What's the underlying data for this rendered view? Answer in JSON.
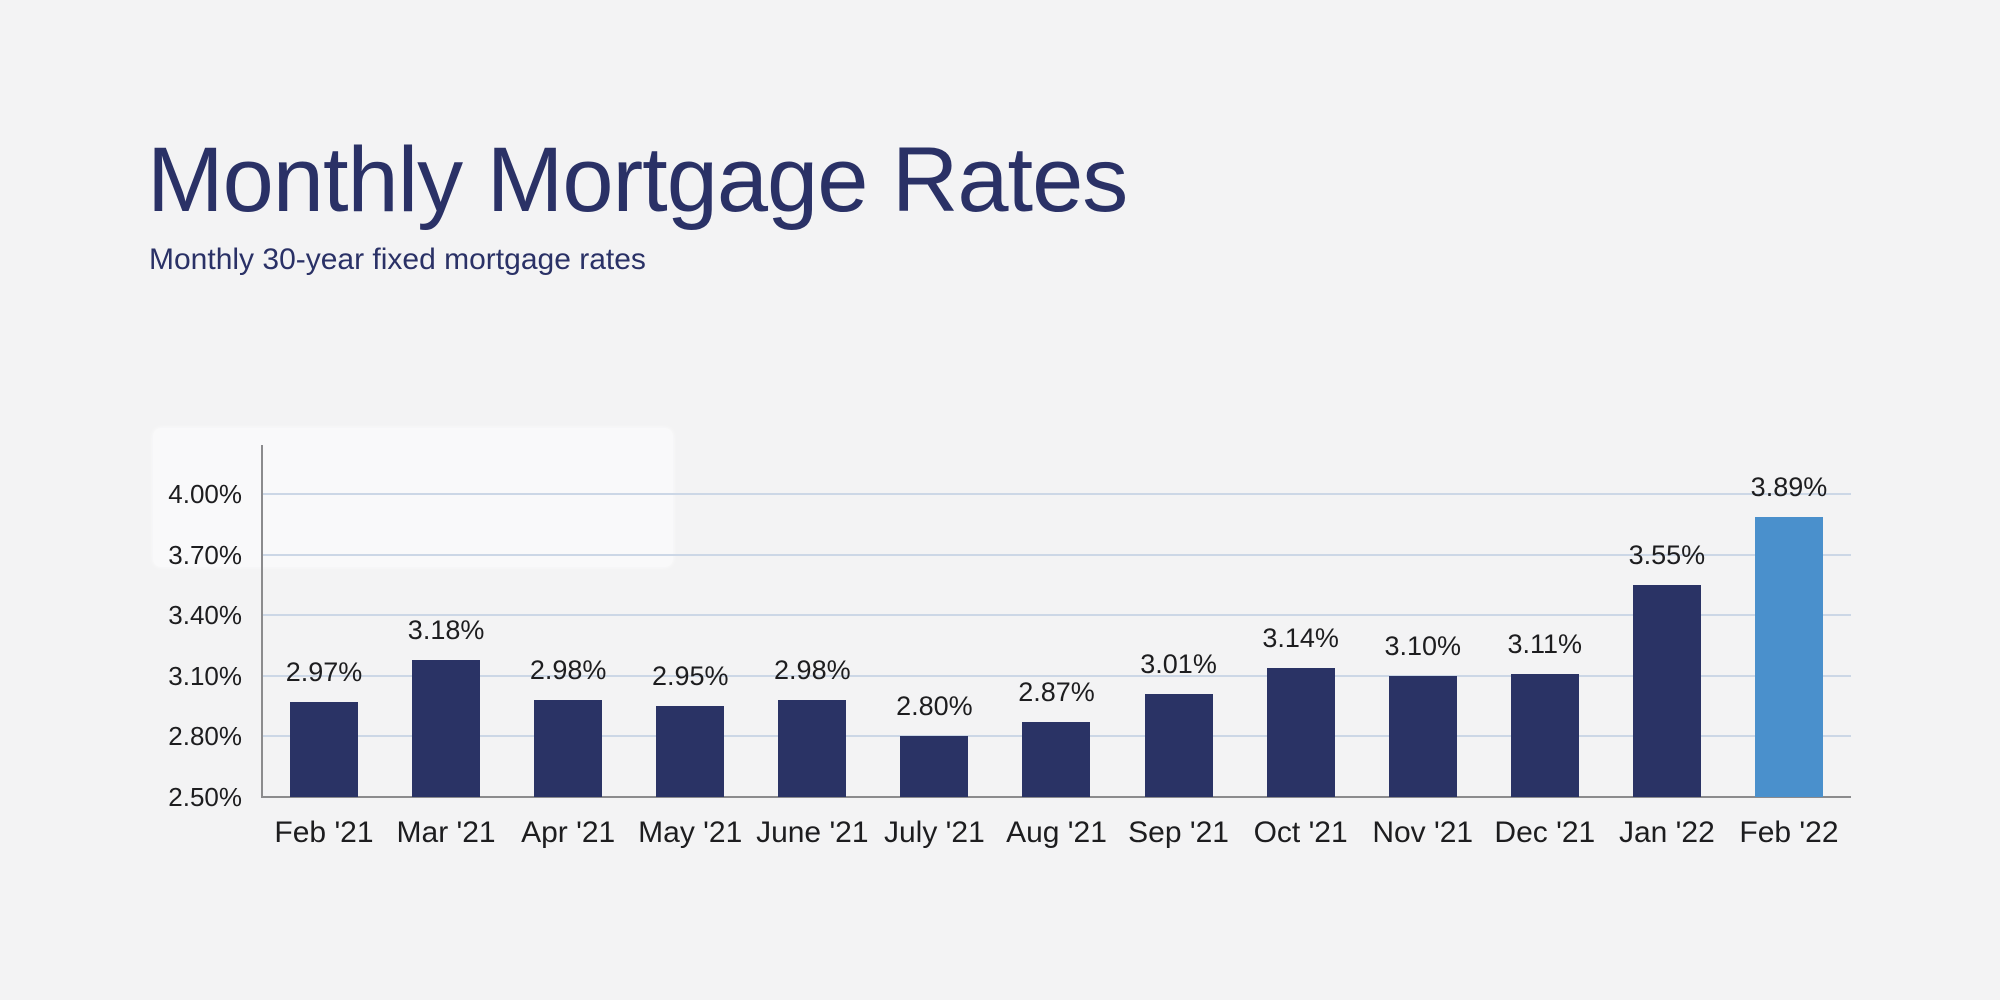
{
  "header": {
    "title": "Monthly Mortgage Rates",
    "subtitle": "Monthly 30-year fixed mortgage rates"
  },
  "colors": {
    "background": "#f3f3f4",
    "title_text": "#2a3166",
    "bar_primary": "#2a3365",
    "bar_highlight": "#4a90cc",
    "gridline": "#ccd7e6",
    "axis": "#8b8b8d",
    "label_text": "#1d1d1f"
  },
  "chart_data": {
    "type": "bar",
    "title": "Monthly Mortgage Rates",
    "subtitle": "Monthly 30-year fixed mortgage rates",
    "categories": [
      "Feb '21",
      "Mar '21",
      "Apr '21",
      "May '21",
      "June '21",
      "July '21",
      "Aug '21",
      "Sep '21",
      "Oct '21",
      "Nov '21",
      "Dec '21",
      "Jan '22",
      "Feb '22"
    ],
    "values": [
      2.97,
      3.18,
      2.98,
      2.95,
      2.98,
      2.8,
      2.87,
      3.01,
      3.14,
      3.1,
      3.11,
      3.55,
      3.89
    ],
    "value_labels": [
      "2.97%",
      "3.18%",
      "2.98%",
      "2.95%",
      "2.98%",
      "2.80%",
      "2.87%",
      "3.01%",
      "3.14%",
      "3.10%",
      "3.11%",
      "3.55%",
      "3.89%"
    ],
    "y_tick_values": [
      2.5,
      2.8,
      3.1,
      3.4,
      3.7,
      4.0
    ],
    "y_tick_labels": [
      "2.50%",
      "2.80%",
      "3.10%",
      "3.40%",
      "3.70%",
      "4.00%"
    ],
    "ylim": [
      2.5,
      4.0
    ],
    "xlabel": "",
    "ylabel": "",
    "grid": true,
    "legend": false,
    "highlight_index": 12
  }
}
